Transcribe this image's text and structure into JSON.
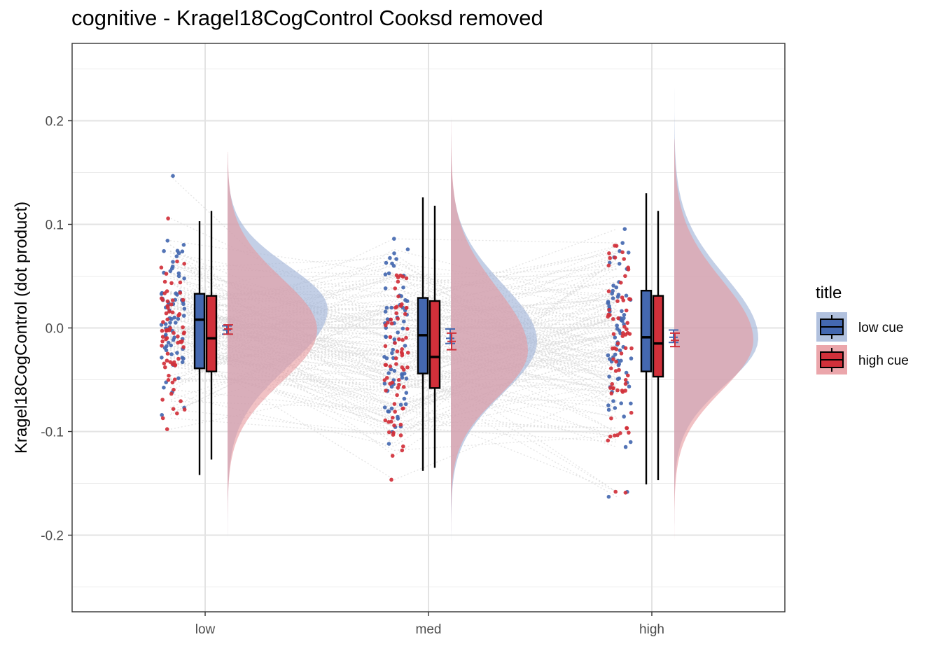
{
  "chart_data": {
    "type": "raincloud",
    "title": "cognitive  -  Kragel18CogControl  Cooksd removed",
    "xlabel": "",
    "ylabel": "Kragel18CogControl  (dot product)",
    "categories": [
      "low",
      "med",
      "high"
    ],
    "ylim": [
      -0.275,
      0.275
    ],
    "yticks": [
      -0.2,
      -0.1,
      0.0,
      0.1,
      0.2
    ],
    "ytick_labels": [
      "-0.2",
      "-0.1",
      "0.0",
      "0.1",
      "0.2"
    ],
    "grid": true,
    "legend": {
      "title": "title",
      "position": "right",
      "entries": [
        "low cue",
        "high cue"
      ]
    },
    "colors": {
      "low cue": "#4468b0",
      "high cue": "#d1303a",
      "low cue fill": "#a3b6d8",
      "high cue fill": "#e8979c"
    },
    "series": [
      {
        "name": "low cue",
        "boxplot": [
          {
            "category": "low",
            "min": -0.142,
            "q1": -0.039,
            "median": 0.008,
            "q3": 0.033,
            "max": 0.103
          },
          {
            "category": "med",
            "min": -0.138,
            "q1": -0.044,
            "median": -0.007,
            "q3": 0.029,
            "max": 0.126
          },
          {
            "category": "high",
            "min": -0.151,
            "q1": -0.042,
            "median": -0.009,
            "q3": 0.036,
            "max": 0.13
          }
        ],
        "mean_se": [
          {
            "category": "low",
            "mean": -0.002,
            "lower": -0.006,
            "upper": 0.002
          },
          {
            "category": "med",
            "mean": -0.01,
            "lower": -0.015,
            "upper": -0.001
          },
          {
            "category": "high",
            "mean": -0.009,
            "lower": -0.014,
            "upper": -0.002
          }
        ],
        "density_peak": [
          {
            "category": "low",
            "at": 0.018
          },
          {
            "category": "med",
            "at": -0.013
          },
          {
            "category": "high",
            "at": -0.01
          }
        ],
        "density_range": [
          {
            "category": "low",
            "min": -0.218,
            "max": 0.168
          },
          {
            "category": "med",
            "min": -0.205,
            "max": 0.21
          },
          {
            "category": "high",
            "min": -0.215,
            "max": 0.238
          }
        ]
      },
      {
        "name": "high cue",
        "boxplot": [
          {
            "category": "low",
            "min": -0.127,
            "q1": -0.042,
            "median": -0.01,
            "q3": 0.031,
            "max": 0.113
          },
          {
            "category": "med",
            "min": -0.135,
            "q1": -0.058,
            "median": -0.028,
            "q3": 0.026,
            "max": 0.118
          },
          {
            "category": "high",
            "min": -0.147,
            "q1": -0.047,
            "median": -0.015,
            "q3": 0.031,
            "max": 0.113
          }
        ],
        "mean_se": [
          {
            "category": "low",
            "mean": -0.001,
            "lower": -0.006,
            "upper": 0.003
          },
          {
            "category": "med",
            "mean": -0.013,
            "lower": -0.021,
            "upper": -0.005
          },
          {
            "category": "high",
            "mean": -0.012,
            "lower": -0.018,
            "upper": -0.005
          }
        ],
        "density_peak": [
          {
            "category": "low",
            "at": -0.002
          },
          {
            "category": "med",
            "at": -0.022
          },
          {
            "category": "high",
            "at": -0.012
          }
        ],
        "density_range": [
          {
            "category": "low",
            "min": -0.205,
            "max": 0.17
          },
          {
            "category": "med",
            "min": -0.205,
            "max": 0.2
          },
          {
            "category": "high",
            "min": -0.215,
            "max": 0.182
          }
        ]
      }
    ]
  }
}
